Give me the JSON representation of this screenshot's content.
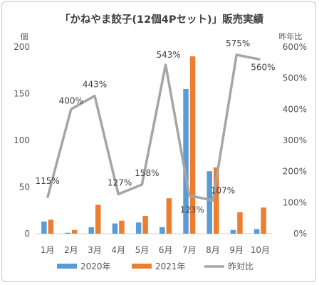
{
  "chart_data": {
    "type": "bar",
    "title": "「かねやま餃子(12個4Pセット)」販売実績",
    "ylabel_left": "個",
    "ylabel_right": "昨年比",
    "categories": [
      "1月",
      "2月",
      "3月",
      "4月",
      "5月",
      "6月",
      "7月",
      "8月",
      "9月",
      "10月"
    ],
    "series": [
      {
        "name": "2020年",
        "type": "bar",
        "axis": "left",
        "color": "#5b9bd5",
        "values": [
          13,
          1,
          7,
          11,
          12,
          7,
          155,
          67,
          4,
          5
        ]
      },
      {
        "name": "2021年",
        "type": "bar",
        "axis": "left",
        "color": "#ed7d31",
        "values": [
          15,
          4,
          31,
          14,
          19,
          38,
          190,
          71,
          23,
          28
        ]
      },
      {
        "name": "昨対比",
        "type": "line",
        "axis": "right",
        "color": "#a5a5a5",
        "values": [
          115,
          400,
          443,
          127,
          158,
          543,
          123,
          107,
          575,
          560
        ],
        "labels": [
          "115%",
          "400%",
          "443%",
          "127%",
          "158%",
          "543%",
          "123%",
          "107%",
          "575%",
          "560%"
        ]
      }
    ],
    "ylim_left": [
      0,
      200
    ],
    "yticks_left": [
      "0",
      "50",
      "100",
      "150",
      "200"
    ],
    "ylim_right": [
      0,
      600
    ],
    "yticks_right": [
      "0%",
      "100%",
      "200%",
      "300%",
      "400%",
      "500%",
      "600%"
    ],
    "grid": false,
    "legend_position": "bottom"
  }
}
